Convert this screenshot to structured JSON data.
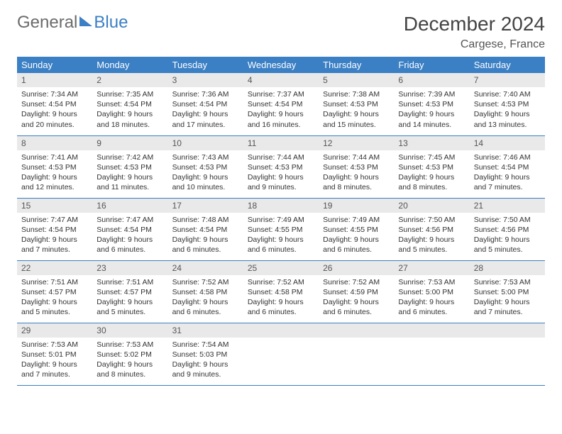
{
  "brand": {
    "part1": "General",
    "part2": "Blue"
  },
  "title": "December 2024",
  "location": "Cargese, France",
  "colors": {
    "header_bg": "#3b7fc4",
    "header_text": "#ffffff",
    "daynum_bg": "#e9e9e9",
    "row_border": "#3b7fc4",
    "page_bg": "#ffffff",
    "text": "#333333"
  },
  "dow": [
    "Sunday",
    "Monday",
    "Tuesday",
    "Wednesday",
    "Thursday",
    "Friday",
    "Saturday"
  ],
  "weeks": [
    [
      {
        "n": "1",
        "sr": "Sunrise: 7:34 AM",
        "ss": "Sunset: 4:54 PM",
        "dl": "Daylight: 9 hours and 20 minutes."
      },
      {
        "n": "2",
        "sr": "Sunrise: 7:35 AM",
        "ss": "Sunset: 4:54 PM",
        "dl": "Daylight: 9 hours and 18 minutes."
      },
      {
        "n": "3",
        "sr": "Sunrise: 7:36 AM",
        "ss": "Sunset: 4:54 PM",
        "dl": "Daylight: 9 hours and 17 minutes."
      },
      {
        "n": "4",
        "sr": "Sunrise: 7:37 AM",
        "ss": "Sunset: 4:54 PM",
        "dl": "Daylight: 9 hours and 16 minutes."
      },
      {
        "n": "5",
        "sr": "Sunrise: 7:38 AM",
        "ss": "Sunset: 4:53 PM",
        "dl": "Daylight: 9 hours and 15 minutes."
      },
      {
        "n": "6",
        "sr": "Sunrise: 7:39 AM",
        "ss": "Sunset: 4:53 PM",
        "dl": "Daylight: 9 hours and 14 minutes."
      },
      {
        "n": "7",
        "sr": "Sunrise: 7:40 AM",
        "ss": "Sunset: 4:53 PM",
        "dl": "Daylight: 9 hours and 13 minutes."
      }
    ],
    [
      {
        "n": "8",
        "sr": "Sunrise: 7:41 AM",
        "ss": "Sunset: 4:53 PM",
        "dl": "Daylight: 9 hours and 12 minutes."
      },
      {
        "n": "9",
        "sr": "Sunrise: 7:42 AM",
        "ss": "Sunset: 4:53 PM",
        "dl": "Daylight: 9 hours and 11 minutes."
      },
      {
        "n": "10",
        "sr": "Sunrise: 7:43 AM",
        "ss": "Sunset: 4:53 PM",
        "dl": "Daylight: 9 hours and 10 minutes."
      },
      {
        "n": "11",
        "sr": "Sunrise: 7:44 AM",
        "ss": "Sunset: 4:53 PM",
        "dl": "Daylight: 9 hours and 9 minutes."
      },
      {
        "n": "12",
        "sr": "Sunrise: 7:44 AM",
        "ss": "Sunset: 4:53 PM",
        "dl": "Daylight: 9 hours and 8 minutes."
      },
      {
        "n": "13",
        "sr": "Sunrise: 7:45 AM",
        "ss": "Sunset: 4:53 PM",
        "dl": "Daylight: 9 hours and 8 minutes."
      },
      {
        "n": "14",
        "sr": "Sunrise: 7:46 AM",
        "ss": "Sunset: 4:54 PM",
        "dl": "Daylight: 9 hours and 7 minutes."
      }
    ],
    [
      {
        "n": "15",
        "sr": "Sunrise: 7:47 AM",
        "ss": "Sunset: 4:54 PM",
        "dl": "Daylight: 9 hours and 7 minutes."
      },
      {
        "n": "16",
        "sr": "Sunrise: 7:47 AM",
        "ss": "Sunset: 4:54 PM",
        "dl": "Daylight: 9 hours and 6 minutes."
      },
      {
        "n": "17",
        "sr": "Sunrise: 7:48 AM",
        "ss": "Sunset: 4:54 PM",
        "dl": "Daylight: 9 hours and 6 minutes."
      },
      {
        "n": "18",
        "sr": "Sunrise: 7:49 AM",
        "ss": "Sunset: 4:55 PM",
        "dl": "Daylight: 9 hours and 6 minutes."
      },
      {
        "n": "19",
        "sr": "Sunrise: 7:49 AM",
        "ss": "Sunset: 4:55 PM",
        "dl": "Daylight: 9 hours and 6 minutes."
      },
      {
        "n": "20",
        "sr": "Sunrise: 7:50 AM",
        "ss": "Sunset: 4:56 PM",
        "dl": "Daylight: 9 hours and 5 minutes."
      },
      {
        "n": "21",
        "sr": "Sunrise: 7:50 AM",
        "ss": "Sunset: 4:56 PM",
        "dl": "Daylight: 9 hours and 5 minutes."
      }
    ],
    [
      {
        "n": "22",
        "sr": "Sunrise: 7:51 AM",
        "ss": "Sunset: 4:57 PM",
        "dl": "Daylight: 9 hours and 5 minutes."
      },
      {
        "n": "23",
        "sr": "Sunrise: 7:51 AM",
        "ss": "Sunset: 4:57 PM",
        "dl": "Daylight: 9 hours and 5 minutes."
      },
      {
        "n": "24",
        "sr": "Sunrise: 7:52 AM",
        "ss": "Sunset: 4:58 PM",
        "dl": "Daylight: 9 hours and 6 minutes."
      },
      {
        "n": "25",
        "sr": "Sunrise: 7:52 AM",
        "ss": "Sunset: 4:58 PM",
        "dl": "Daylight: 9 hours and 6 minutes."
      },
      {
        "n": "26",
        "sr": "Sunrise: 7:52 AM",
        "ss": "Sunset: 4:59 PM",
        "dl": "Daylight: 9 hours and 6 minutes."
      },
      {
        "n": "27",
        "sr": "Sunrise: 7:53 AM",
        "ss": "Sunset: 5:00 PM",
        "dl": "Daylight: 9 hours and 6 minutes."
      },
      {
        "n": "28",
        "sr": "Sunrise: 7:53 AM",
        "ss": "Sunset: 5:00 PM",
        "dl": "Daylight: 9 hours and 7 minutes."
      }
    ],
    [
      {
        "n": "29",
        "sr": "Sunrise: 7:53 AM",
        "ss": "Sunset: 5:01 PM",
        "dl": "Daylight: 9 hours and 7 minutes."
      },
      {
        "n": "30",
        "sr": "Sunrise: 7:53 AM",
        "ss": "Sunset: 5:02 PM",
        "dl": "Daylight: 9 hours and 8 minutes."
      },
      {
        "n": "31",
        "sr": "Sunrise: 7:54 AM",
        "ss": "Sunset: 5:03 PM",
        "dl": "Daylight: 9 hours and 9 minutes."
      },
      {
        "n": "",
        "sr": "",
        "ss": "",
        "dl": ""
      },
      {
        "n": "",
        "sr": "",
        "ss": "",
        "dl": ""
      },
      {
        "n": "",
        "sr": "",
        "ss": "",
        "dl": ""
      },
      {
        "n": "",
        "sr": "",
        "ss": "",
        "dl": ""
      }
    ]
  ]
}
